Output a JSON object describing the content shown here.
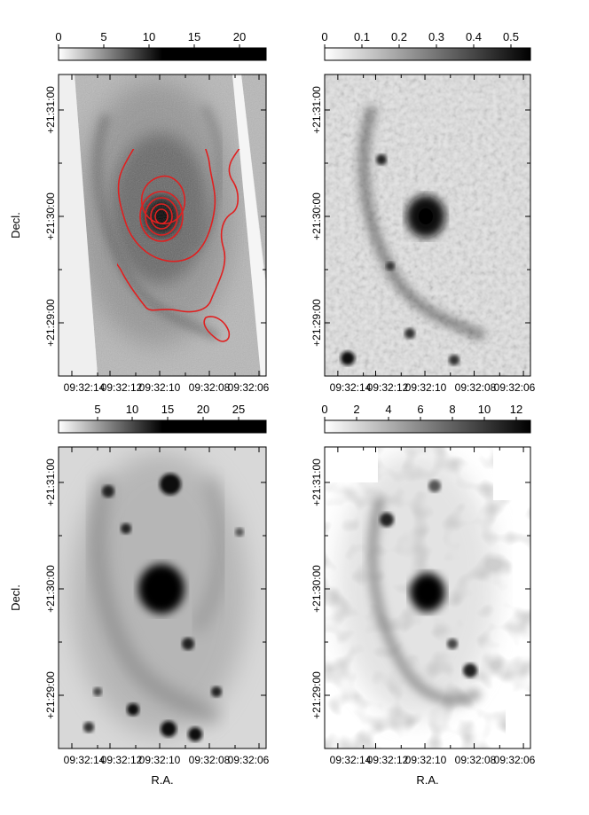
{
  "colorbar_ticks": [
    [
      "0",
      "5",
      "10",
      "15",
      "20"
    ],
    [
      "0",
      "0.1",
      "0.2",
      "0.3",
      "0.4",
      "0.5"
    ],
    [
      "5",
      "10",
      "15",
      "20",
      "25"
    ],
    [
      "0",
      "2",
      "4",
      "6",
      "8",
      "10",
      "12"
    ]
  ],
  "ra_ticks": [
    "09:32:14",
    "09:32:12",
    "09:32:10",
    "09:32:08",
    "09:32:06"
  ],
  "dec_ticks": [
    "+21:31:00",
    "+21:30:00",
    "+21:29:00"
  ],
  "axis_labels": {
    "x": "R.A.",
    "y": "Decl."
  },
  "contour_color": "#e02020"
}
